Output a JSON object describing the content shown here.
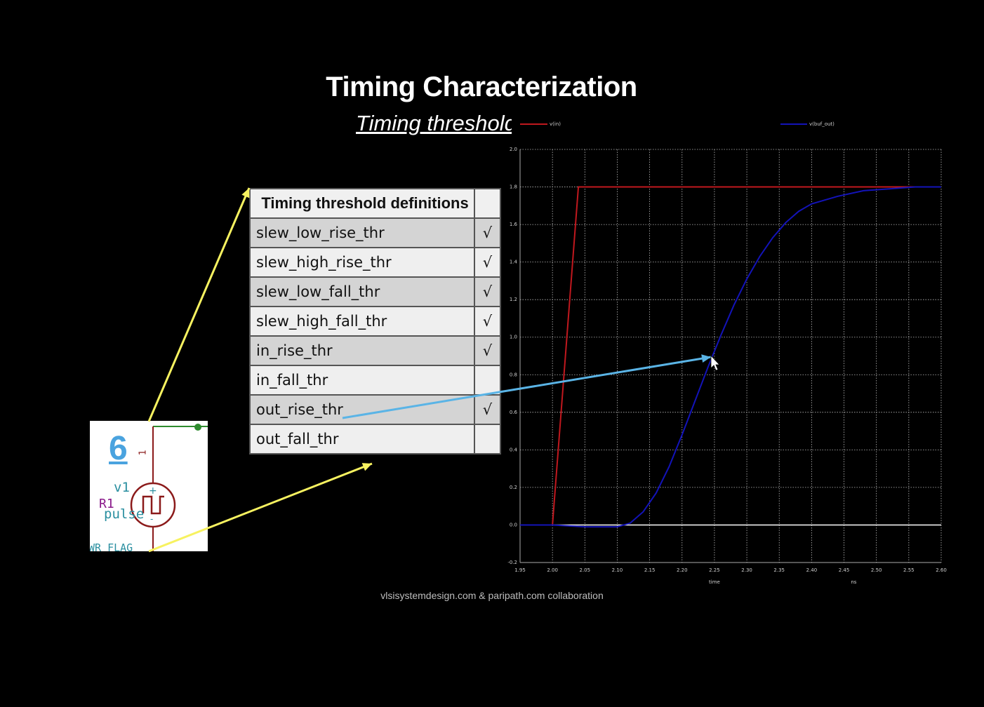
{
  "slide": {
    "title": "Timing Characterization",
    "subtitle": "Timing threshold",
    "footer": "vlsisystemdesign.com & paripath.com collaboration"
  },
  "table": {
    "header": "Timing threshold definitions",
    "rows": [
      {
        "name": "slew_low_rise_thr",
        "check": "√",
        "shade": "grey"
      },
      {
        "name": "slew_high_rise_thr",
        "check": "√",
        "shade": "light"
      },
      {
        "name": "slew_low_fall_thr",
        "check": "√",
        "shade": "grey"
      },
      {
        "name": "slew_high_fall_thr",
        "check": "√",
        "shade": "light"
      },
      {
        "name": "in_rise_thr",
        "check": "√",
        "shade": "grey"
      },
      {
        "name": "in_fall_thr",
        "check": "",
        "shade": "light"
      },
      {
        "name": "out_rise_thr",
        "check": "√",
        "shade": "grey"
      },
      {
        "name": "out_fall_thr",
        "check": "",
        "shade": "light"
      }
    ]
  },
  "schematic": {
    "number": "6",
    "source_name": "v1",
    "ref": "R1",
    "source_type": "pulse",
    "flag": "WR_FLAG",
    "pin": "1",
    "icon": "pulse-source-icon"
  },
  "colors": {
    "background": "#000000",
    "input_trace": "#c0181e",
    "output_trace": "#1313b8",
    "arrow_yellow": "#f7f260",
    "arrow_blue": "#5ab4e6"
  },
  "chart_data": {
    "type": "line",
    "title": "",
    "xlabel": "time",
    "xunit": "ns",
    "ylabel": "",
    "xlim": [
      1.95,
      2.6
    ],
    "ylim": [
      -0.2,
      2.0
    ],
    "grid": true,
    "legend_position": "top",
    "x_ticks": [
      "1.95",
      "2.00",
      "2.05",
      "2.10",
      "2.15",
      "2.20",
      "2.25",
      "2.30",
      "2.35",
      "2.40",
      "2.45",
      "2.50",
      "2.55",
      "2.60"
    ],
    "y_ticks": [
      "-0.2",
      "0.0",
      "0.2",
      "0.4",
      "0.6",
      "0.8",
      "1.0",
      "1.2",
      "1.4",
      "1.6",
      "1.8",
      "2.0"
    ],
    "series": [
      {
        "name": "v(in)",
        "color": "#c0181e",
        "x": [
          1.95,
          2.0,
          2.04,
          2.6
        ],
        "y": [
          0.0,
          0.0,
          1.8,
          1.8
        ]
      },
      {
        "name": "v(buf_out)",
        "color": "#1313b8",
        "x": [
          1.95,
          2.0,
          2.05,
          2.08,
          2.1,
          2.12,
          2.14,
          2.16,
          2.18,
          2.2,
          2.22,
          2.24,
          2.26,
          2.28,
          2.3,
          2.32,
          2.34,
          2.36,
          2.38,
          2.4,
          2.44,
          2.48,
          2.52,
          2.56,
          2.6
        ],
        "y": [
          0.0,
          0.0,
          -0.01,
          -0.01,
          -0.01,
          0.01,
          0.07,
          0.17,
          0.31,
          0.48,
          0.66,
          0.84,
          1.01,
          1.17,
          1.31,
          1.43,
          1.53,
          1.61,
          1.67,
          1.71,
          1.75,
          1.78,
          1.79,
          1.8,
          1.8
        ]
      }
    ]
  }
}
